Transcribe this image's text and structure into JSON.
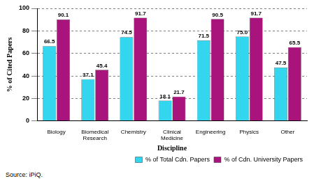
{
  "chart_data": {
    "type": "bar",
    "x_label": "Discipline",
    "y_label": "% of Cited Papers",
    "source": "Source: iPiQ.",
    "categories": [
      "Biology",
      "Biomedical Research",
      "Chemistry",
      "Clinical Medicine",
      "Engineering",
      "Physics",
      "Other"
    ],
    "series": [
      {
        "name": "% of Total Cdn. Papers",
        "color": "#33d6ee",
        "values": [
          66.5,
          37.1,
          74.5,
          18.1,
          71.5,
          75.0,
          47.5
        ],
        "value_labels": [
          "66.5",
          "37.1",
          "74.5",
          "18.1",
          "71.5",
          "75.0",
          "47.5"
        ]
      },
      {
        "name": "% of Cdn. University Papers",
        "color": "#a8147c",
        "values": [
          90.1,
          45.4,
          91.7,
          21.7,
          90.5,
          91.7,
          65.5
        ],
        "value_labels": [
          "90.1",
          "45.4",
          "91.7",
          "21.7",
          "90.5",
          "91.7",
          "65.5"
        ]
      }
    ],
    "ylim": [
      0,
      100
    ],
    "yticks": [
      0,
      20,
      40,
      60,
      80,
      100
    ],
    "grid": true,
    "legend": "bottom right",
    "data_labels": true
  }
}
